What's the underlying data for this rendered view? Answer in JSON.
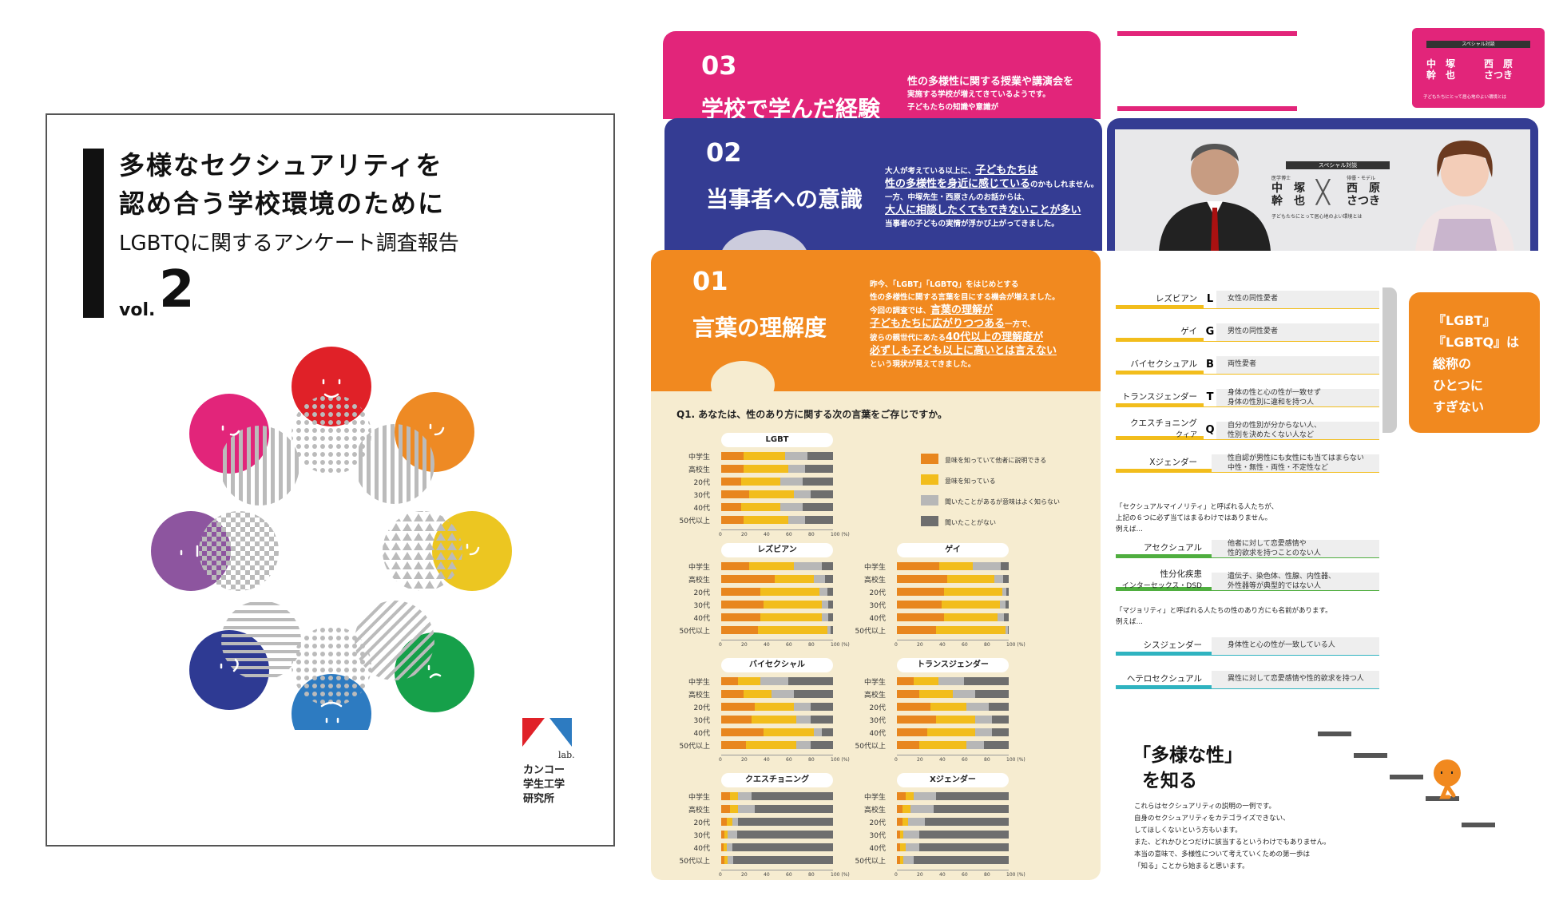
{
  "cover": {
    "title1": "多様なセクシュアリティを",
    "title2": "認め合う学校環境のために",
    "subtitle": "LGBTQに関するアンケート調査報告",
    "vol_prefix": "vol.",
    "vol_num": "2",
    "lab": "lab.",
    "org": [
      "カンコー",
      "学生工学",
      "研究所"
    ]
  },
  "tab03": {
    "num": "03",
    "title": "学校で学んだ経験",
    "text": [
      "性の多様性に関する授業や講演会を",
      "実施する学校が増えてきているようです。",
      "子どもたちの知識や意識が"
    ]
  },
  "tab02": {
    "num": "02",
    "title": "当事者への意識",
    "text": [
      "大人が考えている以上に、",
      "子どもたちは",
      "性の多様性を身近に感じている",
      "のかもしれません。",
      "一方、中塚先生・西原さんのお話からは、",
      "大人に相談したくてもできないことが多い",
      "当事者の子どもの実情が浮かび上がってきました。"
    ]
  },
  "tab01": {
    "num": "01",
    "title": "言葉の理解度",
    "text": [
      "昨今、「LGBT」「LGBTQ」をはじめとする",
      "性の多様性に関する言葉を目にする機会が増えました。",
      "今回の調査では、",
      "言葉の理解が",
      "子どもたちに広がりつつある",
      "一方で、",
      "彼らの親世代にあたる",
      "40代以上の理解度が",
      "必ずしも子ども以上に高いとは言えない",
      "という現状が見えてきました。"
    ]
  },
  "special": {
    "badge": "スペシャル対談",
    "name1a": "中　塚",
    "name1b": "幹　也",
    "name2a": "西　原",
    "name2b": "さつき",
    "sub": "子どもたちにとって居心地のよい環境とは",
    "r1": "医学博士",
    "r2": "俳優・モデル"
  },
  "chart_data": [
    {
      "type": "bar",
      "title": "Q1. あなたは、性のあり方に関する次の言葉をご存じですか。"
    },
    {
      "type": "bar",
      "stacked": true,
      "title": "LGBT",
      "categories": [
        "中学生",
        "高校生",
        "20代",
        "30代",
        "40代",
        "50代以上"
      ],
      "series": [
        {
          "name": "意味を知っていて他者に説明できる",
          "values": [
            20,
            20,
            18,
            25,
            18,
            20
          ]
        },
        {
          "name": "意味を知っている",
          "values": [
            37,
            40,
            35,
            40,
            35,
            40
          ]
        },
        {
          "name": "聞いたことがあるが意味はよく知らない",
          "values": [
            20,
            15,
            20,
            15,
            20,
            15
          ]
        },
        {
          "name": "聞いたことがない",
          "values": [
            23,
            25,
            27,
            20,
            27,
            25
          ]
        }
      ],
      "xticks": [
        "0",
        "20",
        "40",
        "60",
        "80",
        "100 (%)"
      ]
    },
    {
      "type": "bar",
      "stacked": true,
      "title": "レズビアン",
      "categories": [
        "中学生",
        "高校生",
        "20代",
        "30代",
        "40代",
        "50代以上"
      ],
      "series": [
        {
          "name": "意味を知っていて他者に説明できる",
          "values": [
            25,
            48,
            35,
            38,
            35,
            33
          ]
        },
        {
          "name": "意味を知っている",
          "values": [
            40,
            35,
            53,
            52,
            55,
            62
          ]
        },
        {
          "name": "聞いたことがあるが意味はよく知らない",
          "values": [
            25,
            10,
            7,
            6,
            6,
            3
          ]
        },
        {
          "name": "聞いたことがない",
          "values": [
            10,
            7,
            5,
            4,
            4,
            2
          ]
        }
      ]
    },
    {
      "type": "bar",
      "stacked": true,
      "title": "ゲイ",
      "categories": [
        "中学生",
        "高校生",
        "20代",
        "30代",
        "40代",
        "50代以上"
      ],
      "series": [
        {
          "name": "意味を知っていて他者に説明できる",
          "values": [
            38,
            45,
            42,
            40,
            42,
            35
          ]
        },
        {
          "name": "意味を知っている",
          "values": [
            30,
            42,
            52,
            52,
            48,
            62
          ]
        },
        {
          "name": "聞いたことがあるが意味はよく知らない",
          "values": [
            25,
            8,
            4,
            5,
            6,
            2
          ]
        },
        {
          "name": "聞いたことがない",
          "values": [
            7,
            5,
            2,
            3,
            4,
            1
          ]
        }
      ]
    },
    {
      "type": "bar",
      "stacked": true,
      "title": "バイセクシャル",
      "categories": [
        "中学生",
        "高校生",
        "20代",
        "30代",
        "40代",
        "50代以上"
      ],
      "series": [
        {
          "name": "意味を知っていて他者に説明できる",
          "values": [
            15,
            20,
            30,
            27,
            38,
            22
          ]
        },
        {
          "name": "意味を知っている",
          "values": [
            20,
            25,
            35,
            40,
            45,
            45
          ]
        },
        {
          "name": "聞いたことがあるが意味はよく知らない",
          "values": [
            25,
            20,
            15,
            13,
            7,
            13
          ]
        },
        {
          "name": "聞いたことがない",
          "values": [
            40,
            35,
            20,
            20,
            10,
            20
          ]
        }
      ]
    },
    {
      "type": "bar",
      "stacked": true,
      "title": "トランスジェンダー",
      "categories": [
        "中学生",
        "高校生",
        "20代",
        "30代",
        "40代",
        "50代以上"
      ],
      "series": [
        {
          "name": "意味を知っていて他者に説明できる",
          "values": [
            15,
            20,
            30,
            35,
            27,
            20
          ]
        },
        {
          "name": "意味を知っている",
          "values": [
            22,
            30,
            32,
            35,
            43,
            42
          ]
        },
        {
          "name": "聞いたことがあるが意味はよく知らない",
          "values": [
            23,
            20,
            20,
            15,
            15,
            16
          ]
        },
        {
          "name": "聞いたことがない",
          "values": [
            40,
            30,
            18,
            15,
            15,
            22
          ]
        }
      ]
    },
    {
      "type": "bar",
      "stacked": true,
      "title": "クエスチョニング",
      "categories": [
        "中学生",
        "高校生",
        "20代",
        "30代",
        "40代",
        "50代以上"
      ],
      "series": [
        {
          "name": "意味を知っていて他者に説明できる",
          "values": [
            8,
            8,
            5,
            3,
            2,
            3
          ]
        },
        {
          "name": "意味を知っている",
          "values": [
            7,
            7,
            5,
            3,
            3,
            3
          ]
        },
        {
          "name": "聞いたことがあるが意味はよく知らない",
          "values": [
            12,
            15,
            5,
            8,
            5,
            5
          ]
        },
        {
          "name": "聞いたことがない",
          "values": [
            73,
            70,
            85,
            86,
            90,
            89
          ]
        }
      ]
    },
    {
      "type": "bar",
      "stacked": true,
      "title": "Xジェンダー",
      "categories": [
        "中学生",
        "高校生",
        "20代",
        "30代",
        "40代",
        "50代以上"
      ],
      "series": [
        {
          "name": "意味を知っていて他者に説明できる",
          "values": [
            8,
            5,
            5,
            3,
            3,
            3
          ]
        },
        {
          "name": "意味を知っている",
          "values": [
            7,
            7,
            5,
            3,
            5,
            3
          ]
        },
        {
          "name": "聞いたことがあるが意味はよく知らない",
          "values": [
            20,
            21,
            15,
            14,
            12,
            9
          ]
        },
        {
          "name": "聞いたことがない",
          "values": [
            65,
            67,
            75,
            80,
            80,
            85
          ]
        }
      ]
    }
  ],
  "legend": [
    "意味を知っていて他者に説明できる",
    "意味を知っている",
    "聞いたことがあるが意味はよく知らない",
    "聞いたことがない"
  ],
  "colors": {
    "s1": "#e8861e",
    "s2": "#f2bd1c",
    "s3": "#b7b7b7",
    "s4": "#6e6e6e",
    "pink": "#e2257a",
    "navy": "#343c93",
    "orange": "#f1891f",
    "cream": "#f6ecd0"
  },
  "defs": [
    {
      "term": "レズビアン",
      "letter": "L",
      "desc": [
        "女性の同性愛者"
      ]
    },
    {
      "term": "ゲイ",
      "letter": "G",
      "desc": [
        "男性の同性愛者"
      ]
    },
    {
      "term": "バイセクシュアル",
      "letter": "B",
      "desc": [
        "両性愛者"
      ]
    },
    {
      "term": "トランスジェンダー",
      "letter": "T",
      "desc": [
        "身体の性と心の性が一致せず",
        "身体の性別に違和を持つ人"
      ]
    },
    {
      "term": "クエスチョニング",
      "term2": "クィア",
      "letter": "Q",
      "desc": [
        "自分の性別が分からない人、",
        "性別を決めたくない人など"
      ]
    },
    {
      "term": "Xジェンダー",
      "letter": "",
      "desc": [
        "性自認が男性にも女性にも当てはまらない",
        "中性・無性・両性・不定性など"
      ]
    }
  ],
  "note1": [
    "「セクシュアルマイノリティ」と呼ばれる人たちが、",
    "上記の６つに必ず当てはまるわけではありません。",
    "例えば…"
  ],
  "defs2": [
    {
      "term": "アセクシュアル",
      "desc": [
        "他者に対して恋愛感情や",
        "性的欲求を持つことのない人"
      ]
    },
    {
      "term": "性分化疾患",
      "term2": "インターセックス・DSD",
      "desc": [
        "遺伝子、染色体、性腺、内性器、",
        "外性器等が典型的ではない人"
      ]
    }
  ],
  "note2": [
    "「マジョリティ」と呼ばれる人たちの性のあり方にも名前があります。",
    "例えば…"
  ],
  "defs3": [
    {
      "term": "シスジェンダー",
      "desc": [
        "身体性と心の性が一致している人"
      ]
    },
    {
      "term": "ヘテロセクシュアル",
      "desc": [
        "異性に対して恋愛感情や性的欲求を持つ人"
      ]
    }
  ],
  "callout": [
    "『LGBT』",
    "『LGBTQ』は",
    "総称の",
    "ひとつに",
    "すぎない"
  ],
  "know": {
    "title1": "「多様な性」",
    "title2": "を知る",
    "body": [
      "これらはセクシュアリティの説明の一例です。",
      "自身のセクシュアリティをカテゴライズできない、",
      "してほしくないという方もいます。",
      "また、どれかひとつだけに該当するというわけでもありません。",
      "本当の意味で、多様性について考えていくための第一歩は",
      "「知る」ことから始まると思います。"
    ]
  }
}
